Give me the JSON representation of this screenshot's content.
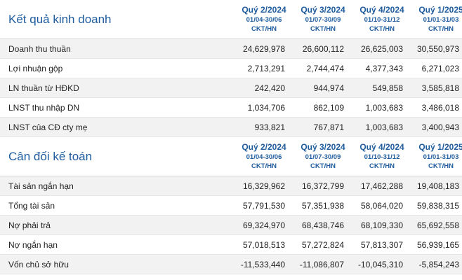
{
  "business_results": {
    "title": "Kết quả kinh doanh",
    "periods": [
      {
        "quarter": "Quý 2/2024",
        "range": "01/04-30/06",
        "unit": "CKT/HN"
      },
      {
        "quarter": "Quý 3/2024",
        "range": "01/07-30/09",
        "unit": "CKT/HN"
      },
      {
        "quarter": "Quý 4/2024",
        "range": "01/10-31/12",
        "unit": "CKT/HN"
      },
      {
        "quarter": "Quý 1/2025",
        "range": "01/01-31/03",
        "unit": "CKT/HN"
      }
    ],
    "rows": [
      {
        "label": "Doanh thu thuần",
        "values": [
          "24,629,978",
          "26,600,112",
          "26,625,003",
          "30,550,973"
        ]
      },
      {
        "label": "Lợi nhuận gộp",
        "values": [
          "2,713,291",
          "2,744,474",
          "4,377,343",
          "6,271,023"
        ]
      },
      {
        "label": "LN thuần từ HĐKD",
        "values": [
          "242,420",
          "944,974",
          "549,858",
          "3,585,818"
        ]
      },
      {
        "label": "LNST thu nhập DN",
        "values": [
          "1,034,706",
          "862,109",
          "1,003,683",
          "3,486,018"
        ]
      },
      {
        "label": "LNST của CĐ cty mẹ",
        "values": [
          "933,821",
          "767,871",
          "1,003,683",
          "3,400,943"
        ]
      }
    ]
  },
  "balance_sheet": {
    "title": "Cân đối kế toán",
    "periods": [
      {
        "quarter": "Quý 2/2024",
        "range": "01/04-30/06",
        "unit": "CKT/HN"
      },
      {
        "quarter": "Quý 3/2024",
        "range": "01/07-30/09",
        "unit": "CKT/HN"
      },
      {
        "quarter": "Quý 4/2024",
        "range": "01/10-31/12",
        "unit": "CKT/HN"
      },
      {
        "quarter": "Quý 1/2025",
        "range": "01/01-31/03",
        "unit": "CKT/HN"
      }
    ],
    "rows": [
      {
        "label": "Tài sản ngắn hạn",
        "values": [
          "16,329,962",
          "16,372,799",
          "17,462,288",
          "19,408,183"
        ]
      },
      {
        "label": "Tổng tài sản",
        "values": [
          "57,791,530",
          "57,351,938",
          "58,064,020",
          "59,838,315"
        ]
      },
      {
        "label": "Nợ phải trả",
        "values": [
          "69,324,970",
          "68,438,746",
          "68,109,330",
          "65,692,558"
        ]
      },
      {
        "label": "Nợ ngắn hạn",
        "values": [
          "57,018,513",
          "57,272,824",
          "57,813,307",
          "56,939,165"
        ]
      },
      {
        "label": "Vốn chủ sở hữu",
        "values": [
          "-11,533,440",
          "-11,086,807",
          "-10,045,310",
          "-5,854,243"
        ]
      }
    ]
  }
}
